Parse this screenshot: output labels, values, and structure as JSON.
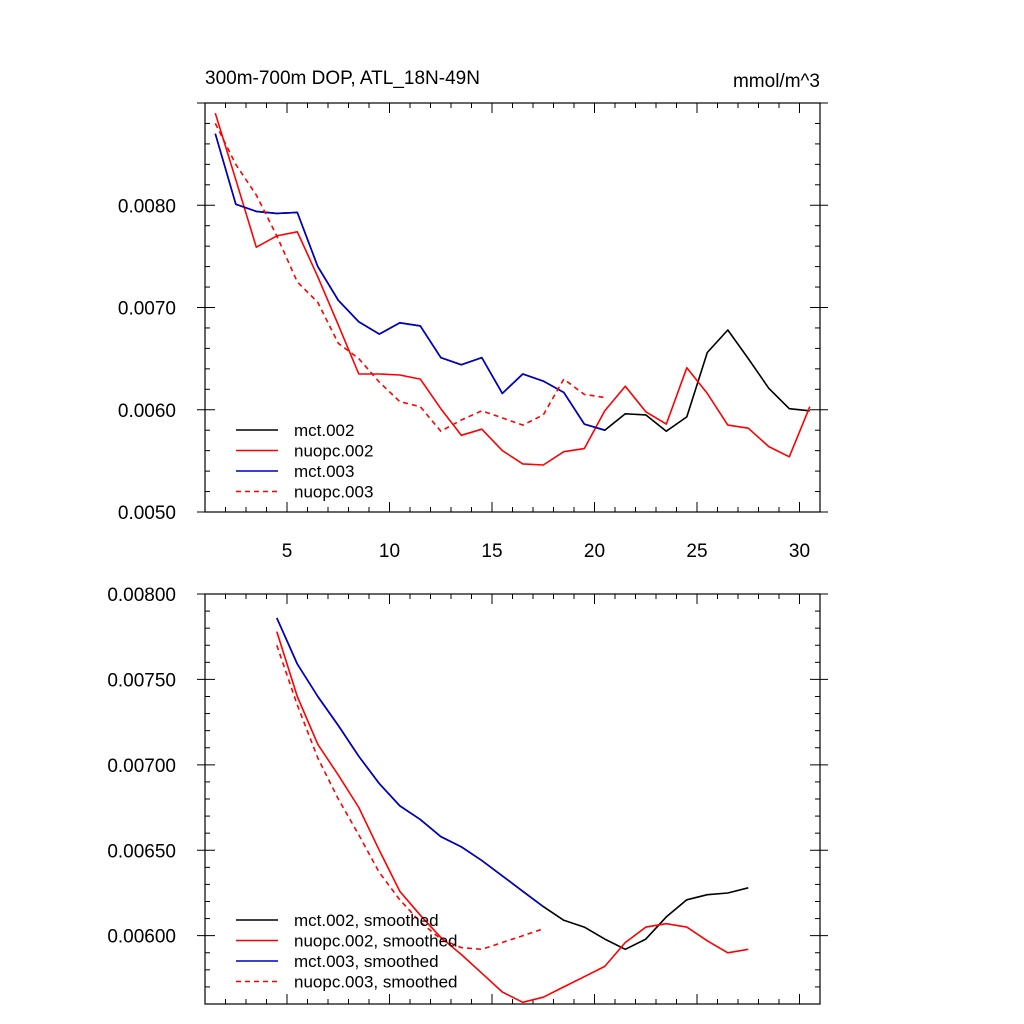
{
  "chart_data": [
    {
      "type": "line",
      "title_left": "300m-700m DOP, ATL_18N-49N",
      "title_right": "mmol/m^3",
      "xlabel": "",
      "ylabel": "",
      "xlim": [
        1,
        31
      ],
      "ylim": [
        0.005,
        0.009
      ],
      "x_ticks": [
        5,
        10,
        15,
        20,
        25,
        30
      ],
      "x_tick_labels": [
        "5",
        "10",
        "15",
        "20",
        "25",
        "30"
      ],
      "y_ticks": [
        0.005,
        0.006,
        0.007,
        0.008
      ],
      "y_tick_labels": [
        "0.0050",
        "0.0060",
        "0.0070",
        "0.0080"
      ],
      "grid": false,
      "legend_position": "bottom-left",
      "series": [
        {
          "name": "mct.002",
          "color": "#000000",
          "dash": "solid",
          "x": [
            1.5,
            2.5,
            3.5,
            4.5,
            5.5,
            6.5,
            7.5,
            8.5,
            9.5,
            10.5,
            11.5,
            12.5,
            13.5,
            14.5,
            15.5,
            16.5,
            17.5,
            18.5,
            19.5,
            20.5,
            21.5,
            22.5,
            23.5,
            24.5,
            25.5,
            26.5,
            27.5,
            28.5,
            29.5,
            30.5
          ],
          "values": [
            0.0087,
            0.00801,
            0.00794,
            0.00792,
            0.00793,
            0.0074,
            0.00707,
            0.00686,
            0.00674,
            0.00685,
            0.00682,
            0.00651,
            0.00644,
            0.00651,
            0.00616,
            0.00635,
            0.00628,
            0.00617,
            0.00586,
            0.0058,
            0.00596,
            0.00595,
            0.00579,
            0.00593,
            0.00656,
            0.00678,
            0.0065,
            0.00621,
            0.00601,
            0.00599
          ]
        },
        {
          "name": "nuopc.002",
          "color": "#ff0000",
          "dash": "solid",
          "x": [
            1.5,
            2.5,
            3.5,
            4.5,
            5.5,
            6.5,
            7.5,
            8.5,
            9.5,
            10.5,
            11.5,
            12.5,
            13.5,
            14.5,
            15.5,
            16.5,
            17.5,
            18.5,
            19.5,
            20.5,
            21.5,
            22.5,
            23.5,
            24.5,
            25.5,
            26.5,
            27.5,
            28.5,
            29.5,
            30.5
          ],
          "values": [
            0.0089,
            0.00825,
            0.00759,
            0.0077,
            0.00774,
            0.0073,
            0.00683,
            0.00635,
            0.00635,
            0.00634,
            0.0063,
            0.00601,
            0.00575,
            0.00581,
            0.0056,
            0.00547,
            0.00546,
            0.00559,
            0.00562,
            0.00599,
            0.00623,
            0.00598,
            0.00586,
            0.00641,
            0.00616,
            0.00585,
            0.00582,
            0.00564,
            0.00554,
            0.00603
          ]
        },
        {
          "name": "mct.003",
          "color": "#0000cc",
          "dash": "solid",
          "x": [
            1.5,
            2.5,
            3.5,
            4.5,
            5.5,
            6.5,
            7.5,
            8.5,
            9.5,
            10.5,
            11.5,
            12.5,
            13.5,
            14.5,
            15.5,
            16.5,
            17.5,
            18.5,
            19.5,
            20.5
          ],
          "values": [
            0.0087,
            0.00801,
            0.00794,
            0.00792,
            0.00793,
            0.0074,
            0.00707,
            0.00686,
            0.00674,
            0.00685,
            0.00682,
            0.00651,
            0.00644,
            0.00651,
            0.00616,
            0.00635,
            0.00628,
            0.00617,
            0.00586,
            0.0058
          ]
        },
        {
          "name": "nuopc.003",
          "color": "#ff0000",
          "dash": "dashed",
          "x": [
            1.5,
            2.5,
            3.5,
            4.5,
            5.5,
            6.5,
            7.5,
            8.5,
            9.5,
            10.5,
            11.5,
            12.5,
            13.5,
            14.5,
            15.5,
            16.5,
            17.5,
            18.5,
            19.5,
            20.5
          ],
          "values": [
            0.0088,
            0.0084,
            0.0081,
            0.0077,
            0.00725,
            0.00705,
            0.00665,
            0.0065,
            0.00627,
            0.00608,
            0.00603,
            0.00579,
            0.0059,
            0.00599,
            0.00592,
            0.00585,
            0.00595,
            0.0063,
            0.00615,
            0.00612
          ]
        }
      ]
    },
    {
      "type": "line",
      "xlabel": "",
      "ylabel": "",
      "xlim": [
        1,
        31
      ],
      "ylim": [
        0.0056,
        0.008
      ],
      "x_ticks": [
        5,
        10,
        15,
        20,
        25,
        30
      ],
      "x_tick_labels": [],
      "y_ticks": [
        0.006,
        0.0065,
        0.007,
        0.0075,
        0.008
      ],
      "y_tick_labels": [
        "0.00600",
        "0.00650",
        "0.00700",
        "0.00750",
        "0.00800"
      ],
      "grid": false,
      "legend_position": "bottom-left",
      "series": [
        {
          "name": "mct.002, smoothed",
          "color": "#000000",
          "dash": "solid",
          "x": [
            4.5,
            5.5,
            6.5,
            7.5,
            8.5,
            9.5,
            10.5,
            11.5,
            12.5,
            13.5,
            14.5,
            15.5,
            16.5,
            17.5,
            18.5,
            19.5,
            20.5,
            21.5,
            22.5,
            23.5,
            24.5,
            25.5,
            26.5,
            27.5
          ],
          "values": [
            0.00786,
            0.00759,
            0.0074,
            0.00723,
            0.00705,
            0.00689,
            0.00676,
            0.00668,
            0.00658,
            0.00652,
            0.00644,
            0.00635,
            0.00626,
            0.00617,
            0.00609,
            0.00605,
            0.00598,
            0.00592,
            0.00598,
            0.00611,
            0.00621,
            0.00624,
            0.00625,
            0.00628
          ]
        },
        {
          "name": "nuopc.002, smoothed",
          "color": "#ff0000",
          "dash": "solid",
          "x": [
            4.5,
            5.5,
            6.5,
            7.5,
            8.5,
            9.5,
            10.5,
            11.5,
            12.5,
            13.5,
            14.5,
            15.5,
            16.5,
            17.5,
            18.5,
            19.5,
            20.5,
            21.5,
            22.5,
            23.5,
            24.5,
            25.5,
            26.5,
            27.5
          ],
          "values": [
            0.00778,
            0.0074,
            0.00712,
            0.00694,
            0.00675,
            0.0065,
            0.00626,
            0.00612,
            0.00599,
            0.00589,
            0.00578,
            0.00567,
            0.00561,
            0.00564,
            0.0057,
            0.00576,
            0.00582,
            0.00596,
            0.00605,
            0.00607,
            0.00605,
            0.00597,
            0.0059,
            0.00592
          ]
        },
        {
          "name": "mct.003, smoothed",
          "color": "#0000cc",
          "dash": "solid",
          "x": [
            4.5,
            5.5,
            6.5,
            7.5,
            8.5,
            9.5,
            10.5,
            11.5,
            12.5,
            13.5,
            14.5,
            15.5,
            16.5,
            17.5
          ],
          "values": [
            0.00786,
            0.00759,
            0.0074,
            0.00723,
            0.00705,
            0.00689,
            0.00676,
            0.00668,
            0.00658,
            0.00652,
            0.00644,
            0.00635,
            0.00626,
            0.00617
          ]
        },
        {
          "name": "nuopc.003, smoothed",
          "color": "#ff0000",
          "dash": "dashed",
          "x": [
            4.5,
            5.5,
            6.5,
            7.5,
            8.5,
            9.5,
            10.5,
            11.5,
            12.5,
            13.5,
            14.5,
            15.5,
            16.5,
            17.5
          ],
          "values": [
            0.0077,
            0.00735,
            0.00704,
            0.0068,
            0.00659,
            0.00637,
            0.00621,
            0.00608,
            0.00598,
            0.00593,
            0.00592,
            0.00596,
            0.006,
            0.00604
          ]
        }
      ]
    }
  ]
}
